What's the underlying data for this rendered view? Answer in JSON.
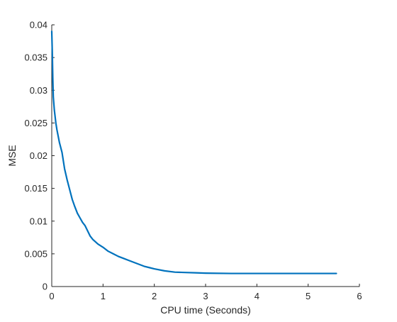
{
  "chart_data": {
    "type": "line",
    "title": "",
    "xlabel": "CPU time (Seconds)",
    "ylabel": "MSE",
    "xlim": [
      0,
      6
    ],
    "ylim": [
      0,
      0.04
    ],
    "xticks": [
      0,
      1,
      2,
      3,
      4,
      5,
      6
    ],
    "xtick_labels": [
      "0",
      "1",
      "2",
      "3",
      "4",
      "5",
      "6"
    ],
    "yticks": [
      0,
      0.005,
      0.01,
      0.015,
      0.02,
      0.025,
      0.03,
      0.035,
      0.04
    ],
    "ytick_labels": [
      "0",
      "0.005",
      "0.01",
      "0.015",
      "0.02",
      "0.025",
      "0.03",
      "0.035",
      "0.04"
    ],
    "grid": false,
    "legend": "none",
    "line_color": "#0072BD",
    "series": [
      {
        "x": [
          0.0,
          0.01,
          0.02,
          0.03,
          0.05,
          0.08,
          0.1,
          0.15,
          0.2,
          0.25,
          0.3,
          0.35,
          0.4,
          0.45,
          0.5,
          0.55,
          0.6,
          0.65,
          0.7,
          0.75,
          0.8,
          0.9,
          1.0,
          1.1,
          1.2,
          1.3,
          1.4,
          1.5,
          1.6,
          1.7,
          1.8,
          1.9,
          2.0,
          2.2,
          2.4,
          2.6,
          2.8,
          3.0,
          3.5,
          4.0,
          4.5,
          5.0,
          5.55
        ],
        "y": [
          0.039,
          0.036,
          0.032,
          0.029,
          0.027,
          0.025,
          0.024,
          0.022,
          0.0205,
          0.018,
          0.0163,
          0.0148,
          0.0133,
          0.0122,
          0.0112,
          0.0105,
          0.0098,
          0.0093,
          0.0085,
          0.0077,
          0.0072,
          0.0065,
          0.006,
          0.0054,
          0.005,
          0.0046,
          0.0043,
          0.004,
          0.0037,
          0.0034,
          0.0031,
          0.0029,
          0.0027,
          0.0024,
          0.0022,
          0.00215,
          0.0021,
          0.00205,
          0.002,
          0.002,
          0.002,
          0.002,
          0.002
        ]
      }
    ]
  }
}
